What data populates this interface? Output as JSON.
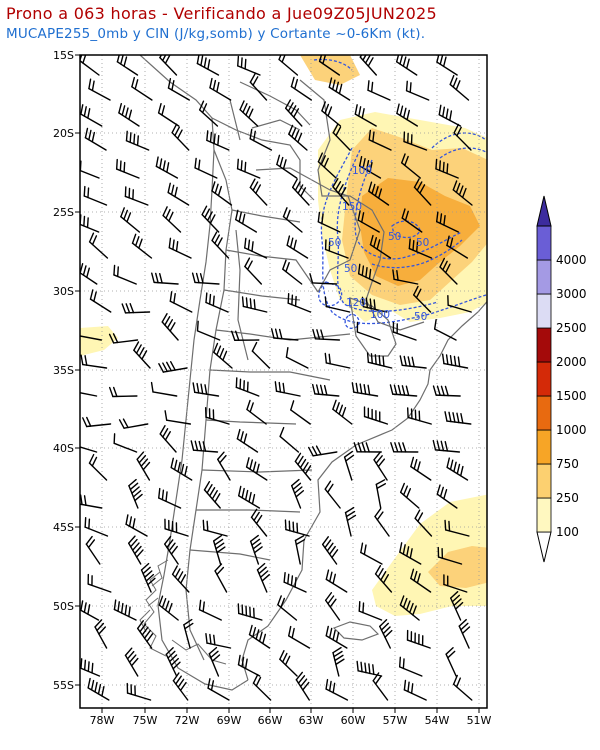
{
  "title": {
    "line1": "Prono a 063 horas - Verificando a Jue09Z05JUN2025",
    "line2": "MUCAPE255_0mb y CIN (J/kg,somb) y Cortante ~0-6Km (kt)."
  },
  "axes": {
    "lat_labels": [
      "15S",
      "20S",
      "25S",
      "30S",
      "35S",
      "40S",
      "45S",
      "50S",
      "55S"
    ],
    "lon_labels": [
      "78W",
      "75W",
      "72W",
      "69W",
      "66W",
      "63W",
      "60W",
      "57W",
      "54W",
      "51W"
    ]
  },
  "colorbar": {
    "levels": [
      "100",
      "250",
      "750",
      "1000",
      "1500",
      "2000",
      "2500",
      "3000",
      "4000"
    ],
    "colors": [
      "#fff8c0",
      "#fcd070",
      "#f7a526",
      "#e86a10",
      "#d42a08",
      "#a40a0a",
      "#dcdcf4",
      "#a49ae4",
      "#6a5ed6",
      "#3c2c9e"
    ]
  },
  "colors": {
    "cape_light": "#fff6b4",
    "cape_mid": "#fcd27a",
    "cape_high": "#f7ae3c",
    "cin_contour": "#3355dd",
    "coast": "#6e6e6e"
  },
  "cin_labels": [
    "100",
    "150",
    "50",
    "50",
    "120",
    "100",
    "50",
    "50",
    "50"
  ]
}
